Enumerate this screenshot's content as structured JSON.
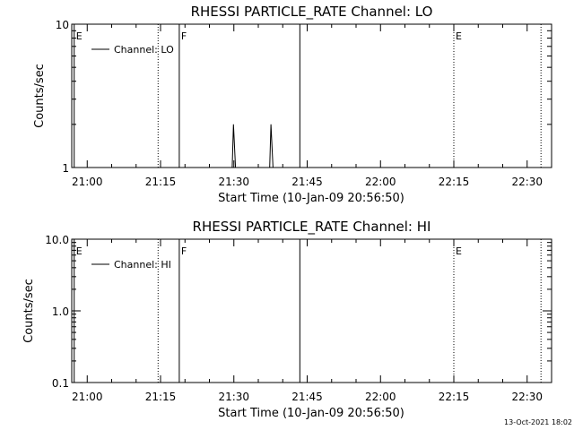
{
  "chart_data": [
    {
      "type": "line",
      "title": "RHESSI PARTICLE_RATE Channel: LO",
      "xlabel": "Start Time (10-Jan-09 20:56:50)",
      "ylabel": "Counts/sec",
      "yscale": "log",
      "ylim": [
        1,
        10
      ],
      "xlim": [
        "20:56:50",
        "22:35:00"
      ],
      "x_ticks": [
        "21:00",
        "21:15",
        "21:30",
        "21:45",
        "22:00",
        "22:15",
        "22:30"
      ],
      "y_ticks": [
        "1",
        "10"
      ],
      "legend": "top-left",
      "series": [
        {
          "name": "Channel: LO",
          "color": "#000000",
          "points": [
            [
              "21:29:40",
              1
            ],
            [
              "21:29:55",
              2
            ],
            [
              "21:30:20",
              1
            ],
            [
              "21:37:20",
              1
            ],
            [
              "21:37:35",
              2
            ],
            [
              "21:38:00",
              1
            ]
          ]
        }
      ],
      "markers": [
        {
          "time": "20:57:20",
          "label": "E",
          "style": "solid"
        },
        {
          "time": "21:18:50",
          "label": "F",
          "style": "solid"
        },
        {
          "time": "21:43:30",
          "label": "",
          "style": "solid"
        },
        {
          "time": "21:14:30",
          "label": "",
          "style": "dotted"
        },
        {
          "time": "22:15:00",
          "label": "E",
          "style": "dotted"
        },
        {
          "time": "22:32:50",
          "label": "",
          "style": "dotted"
        }
      ]
    },
    {
      "type": "line",
      "title": "RHESSI PARTICLE_RATE Channel: HI",
      "xlabel": "Start Time (10-Jan-09 20:56:50)",
      "ylabel": "Counts/sec",
      "yscale": "log",
      "ylim": [
        0.1,
        10
      ],
      "xlim": [
        "20:56:50",
        "22:35:00"
      ],
      "x_ticks": [
        "21:00",
        "21:15",
        "21:30",
        "21:45",
        "22:00",
        "22:15",
        "22:30"
      ],
      "y_ticks": [
        "0.1",
        "1.0",
        "10.0"
      ],
      "legend": "top-left",
      "series": [
        {
          "name": "Channel: HI",
          "color": "#000000",
          "points": []
        }
      ],
      "markers": [
        {
          "time": "20:57:20",
          "label": "E",
          "style": "solid"
        },
        {
          "time": "21:18:50",
          "label": "F",
          "style": "solid"
        },
        {
          "time": "21:43:30",
          "label": "",
          "style": "solid"
        },
        {
          "time": "21:14:30",
          "label": "",
          "style": "dotted"
        },
        {
          "time": "22:15:00",
          "label": "E",
          "style": "dotted"
        },
        {
          "time": "22:32:50",
          "label": "",
          "style": "dotted"
        }
      ]
    }
  ],
  "footer": {
    "timestamp": "13-Oct-2021 18:02"
  }
}
